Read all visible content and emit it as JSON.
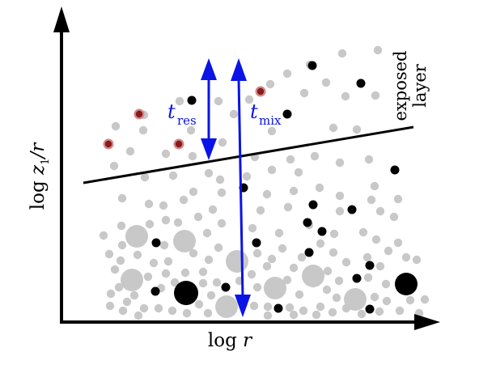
{
  "labels": {
    "x_axis": {
      "main": "log",
      "var": "r"
    },
    "y_axis": {
      "main": "log",
      "var": "z",
      "sub": "1",
      "slash_var": "/r"
    },
    "t_res": {
      "main": "t",
      "sub": "res"
    },
    "t_mix": {
      "main": "t",
      "sub": "mix"
    },
    "exposed_line1": "exposed",
    "exposed_line2": "layer"
  },
  "colors": {
    "axis": "#000000",
    "boundary_line": "#000000",
    "arrow": "#0a14e6",
    "particle_grey": "#c8c8c8",
    "particle_black": "#000000",
    "particle_red_fill": "#8b1a1a",
    "particle_red_ring": "#d08a8a",
    "text": "#000000"
  }
}
